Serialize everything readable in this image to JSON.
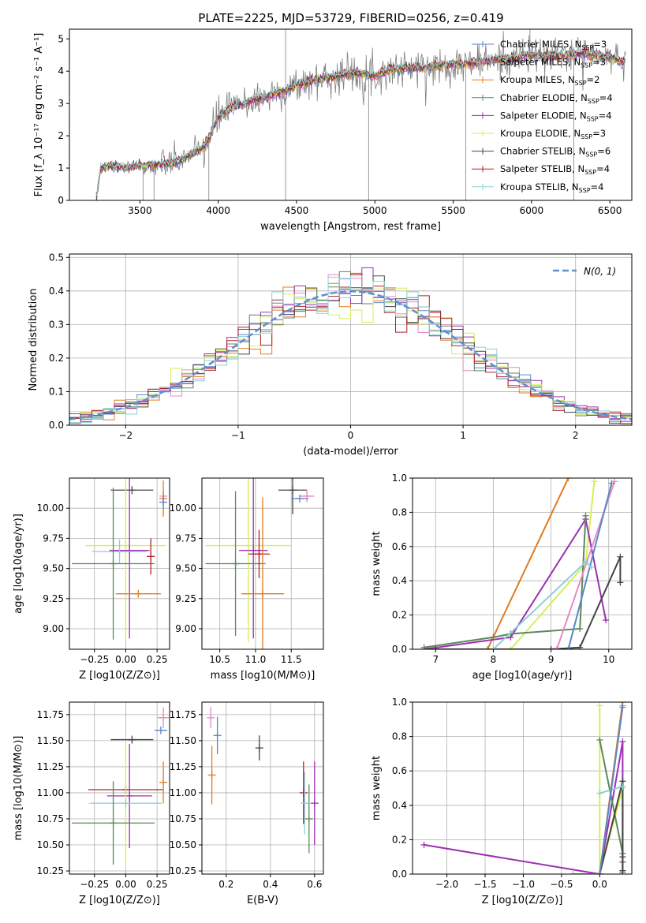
{
  "figure_title": "PLATE=2225, MJD=53729, FIBERID=0256, z=0.419",
  "colors": {
    "Chabrier MILES": "#5b86c9",
    "Salpeter MILES": "#e78ac3",
    "Kroupa MILES": "#e07b20",
    "Chabrier ELODIE": "#5a8a5a",
    "Salpeter ELODIE": "#9b30b0",
    "Kroupa ELODIE": "#d4ef5a",
    "Chabrier STELIB": "#444444",
    "Salpeter STELIB": "#b0202a",
    "Kroupa STELIB": "#8ecfd8",
    "data": "#808080",
    "gaussian": "#5b8fd6"
  },
  "chart_data": [
    {
      "id": "spectrum",
      "type": "line",
      "xlabel": "wavelength [Angstrom, rest frame]",
      "ylabel": "Flux [f_λ 10⁻¹⁷ erg cm⁻² s⁻¹ A⁻¹]",
      "xlim": [
        3050,
        6640
      ],
      "ylim": [
        0,
        5.3
      ],
      "xticks": [
        3500,
        4000,
        4500,
        5000,
        5500,
        6000,
        6500
      ],
      "yticks": [
        0,
        1,
        2,
        3,
        4,
        5
      ],
      "grid": false,
      "legend_position": "right",
      "data_trace": {
        "name": "data",
        "x": [
          3220,
          3250,
          3300,
          3350,
          3400,
          3450,
          3500,
          3550,
          3600,
          3650,
          3700,
          3750,
          3800,
          3850,
          3900,
          3950,
          4000,
          4100,
          4200,
          4300,
          4400,
          4500,
          4600,
          4700,
          4800,
          4900,
          5000,
          5100,
          5200,
          5300,
          5400,
          5500,
          5600,
          5700,
          5800,
          5900,
          6000,
          6100,
          6200,
          6300,
          6400,
          6500,
          6600
        ],
        "y": [
          0.02,
          1.0,
          1.07,
          1.05,
          1.0,
          1.05,
          1.1,
          1.08,
          1.1,
          1.12,
          1.15,
          1.2,
          1.35,
          1.5,
          1.6,
          2.0,
          2.6,
          2.9,
          3.05,
          3.2,
          3.35,
          3.55,
          3.7,
          3.8,
          3.9,
          3.95,
          3.85,
          4.05,
          4.1,
          4.1,
          4.15,
          4.2,
          4.25,
          4.3,
          4.35,
          4.4,
          4.5,
          4.45,
          4.5,
          4.55,
          4.5,
          4.4,
          4.3
        ]
      },
      "model_traces": [
        {
          "name": "Chabrier MILES",
          "label": "Chabrier MILES, N",
          "sub": "SSP",
          "suffix": "=3"
        },
        {
          "name": "Salpeter MILES",
          "label": "Salpeter MILES, N",
          "sub": "SSP",
          "suffix": "=3"
        },
        {
          "name": "Kroupa MILES",
          "label": "Kroupa MILES, N",
          "sub": "SSP",
          "suffix": "=2"
        },
        {
          "name": "Chabrier ELODIE",
          "label": "Chabrier ELODIE, N",
          "sub": "SSP",
          "suffix": "=4"
        },
        {
          "name": "Salpeter ELODIE",
          "label": "Salpeter ELODIE, N",
          "sub": "SSP",
          "suffix": "=4"
        },
        {
          "name": "Kroupa ELODIE",
          "label": "Kroupa ELODIE, N",
          "sub": "SSP",
          "suffix": "=3"
        },
        {
          "name": "Chabrier STELIB",
          "label": "Chabrier STELIB, N",
          "sub": "SSP",
          "suffix": "=6"
        },
        {
          "name": "Salpeter STELIB",
          "label": "Salpeter STELIB, N",
          "sub": "SSP",
          "suffix": "=4"
        },
        {
          "name": "Kroupa STELIB",
          "label": "Kroupa STELIB, N",
          "sub": "SSP",
          "suffix": "=4"
        }
      ]
    },
    {
      "id": "residuals",
      "type": "line",
      "xlabel": "(data-model)/error",
      "ylabel": "Normed distribution",
      "xlim": [
        -2.5,
        2.5
      ],
      "ylim": [
        0,
        0.51
      ],
      "xticks": [
        -2,
        -1,
        0,
        1,
        2
      ],
      "yticks": [
        0.0,
        0.1,
        0.2,
        0.3,
        0.4,
        0.5
      ],
      "grid": true,
      "legend_position": "top-right",
      "gaussian_label": "N(0, 1)",
      "bin_width": 0.1
    },
    {
      "id": "age_vs_Z",
      "type": "scatter",
      "xlabel": "Z [log10(Z/Z⊙)]",
      "ylabel": "age  [log10(age/yr)]",
      "xlim": [
        -0.45,
        0.35
      ],
      "ylim": [
        8.83,
        10.25
      ],
      "xticks": [
        -0.25,
        0.0,
        0.25
      ],
      "yticks": [
        9.0,
        9.25,
        9.5,
        9.75,
        10.0
      ],
      "grid": true,
      "points": [
        {
          "series": "Chabrier STELIB",
          "x": 0.05,
          "y": 10.15,
          "xerr": 0.17,
          "yerr": 0.0
        },
        {
          "series": "Salpeter MILES",
          "x": 0.3,
          "y": 10.1,
          "xerr": 0.0,
          "yerr": 0.05
        },
        {
          "series": "Kroupa MILES",
          "x": 0.3,
          "y": 10.08,
          "xerr": 0.0,
          "yerr": 0.15
        },
        {
          "series": "Chabrier MILES",
          "x": 0.3,
          "y": 10.05,
          "xerr": 0.0,
          "yerr": 0.05
        },
        {
          "series": "Kroupa ELODIE",
          "x": 0.0,
          "y": 9.69,
          "xerr": 0.32,
          "yerr": 0.8
        },
        {
          "series": "Salpeter ELODIE",
          "x": 0.03,
          "y": 9.65,
          "xerr": 0.16,
          "yerr": 0.73
        },
        {
          "series": "Kroupa STELIB",
          "x": -0.05,
          "y": 9.64,
          "xerr": 0.22,
          "yerr": 0.1
        },
        {
          "series": "Chabrier ELODIE",
          "x": -0.1,
          "y": 9.54,
          "xerr": 0.33,
          "yerr": 0.63
        },
        {
          "series": "Salpeter STELIB",
          "x": 0.2,
          "y": 9.6,
          "xerr": 0.0,
          "yerr": 0.15
        },
        {
          "series": "Kroupa MILES",
          "x": 0.1,
          "y": 9.29,
          "xerr": 0.18,
          "yerr": 0.0
        }
      ]
    },
    {
      "id": "age_vs_mass",
      "type": "scatter",
      "xlabel": "mass [log10(M/M⊙)]",
      "ylabel": "",
      "xlim": [
        10.25,
        11.95
      ],
      "ylim": [
        8.83,
        10.25
      ],
      "xticks": [
        10.5,
        11.0,
        11.5
      ],
      "yticks": [
        9.0,
        9.25,
        9.5,
        9.75,
        10.0
      ],
      "grid": true,
      "points": [
        {
          "series": "Chabrier STELIB",
          "x": 11.52,
          "y": 10.15,
          "xerr": 0.2,
          "yerr": 0.2
        },
        {
          "series": "Salpeter MILES",
          "x": 11.72,
          "y": 10.1,
          "xerr": 0.1,
          "yerr": 0.05
        },
        {
          "series": "Chabrier MILES",
          "x": 11.62,
          "y": 10.08,
          "xerr": 0.12,
          "yerr": 0.0
        },
        {
          "series": "Kroupa ELODIE",
          "x": 10.9,
          "y": 9.69,
          "xerr": 0.6,
          "yerr": 0.8
        },
        {
          "series": "Salpeter ELODIE",
          "x": 10.97,
          "y": 9.65,
          "xerr": 0.2,
          "yerr": 0.73
        },
        {
          "series": "Chabrier ELODIE",
          "x": 10.72,
          "y": 9.54,
          "xerr": 0.42,
          "yerr": 0.6
        },
        {
          "series": "Salpeter STELIB",
          "x": 11.05,
          "y": 9.62,
          "xerr": 0.15,
          "yerr": 0.2
        },
        {
          "series": "Kroupa MILES",
          "x": 11.1,
          "y": 9.29,
          "xerr": 0.3,
          "yerr": 0.8
        }
      ]
    },
    {
      "id": "weight_vs_age",
      "type": "line",
      "xlabel": "age  [log10(age/yr)]",
      "ylabel": "mass weight",
      "xlim": [
        6.6,
        10.4
      ],
      "ylim": [
        0,
        1
      ],
      "xticks": [
        7,
        8,
        9,
        10
      ],
      "yticks": [
        0.0,
        0.2,
        0.4,
        0.6,
        0.8,
        1.0
      ],
      "grid": true,
      "series": [
        {
          "name": "Kroupa MILES",
          "x": [
            7.9,
            9.3
          ],
          "y": [
            0.0,
            1.0
          ]
        },
        {
          "name": "Kroupa ELODIE",
          "x": [
            8.3,
            9.6,
            9.75
          ],
          "y": [
            0.0,
            0.5,
            0.98
          ]
        },
        {
          "name": "Salpeter ELODIE",
          "x": [
            6.8,
            8.3,
            9.6,
            9.95
          ],
          "y": [
            0.0,
            0.07,
            0.76,
            0.17
          ]
        },
        {
          "name": "Chabrier ELODIE",
          "x": [
            6.8,
            8.0,
            8.3,
            9.5,
            9.6
          ],
          "y": [
            0.01,
            0.07,
            0.09,
            0.12,
            0.78
          ]
        },
        {
          "name": "Chabrier STELIB",
          "x": [
            7.0,
            9.0,
            9.5,
            10.2,
            10.2
          ],
          "y": [
            0.0,
            0.0,
            0.01,
            0.54,
            0.39
          ]
        },
        {
          "name": "Salpeter MILES",
          "x": [
            9.1,
            10.1
          ],
          "y": [
            0.0,
            0.98
          ]
        },
        {
          "name": "Chabrier MILES",
          "x": [
            9.3,
            10.05
          ],
          "y": [
            0.0,
            0.97
          ]
        },
        {
          "name": "Kroupa STELIB",
          "x": [
            8.0,
            9.6,
            9.7
          ],
          "y": [
            0.0,
            0.51,
            0.48
          ]
        }
      ]
    },
    {
      "id": "mass_vs_Z",
      "type": "scatter",
      "xlabel": "Z [log10(Z/Z⊙)]",
      "ylabel": "mass [log10(M/M⊙)]",
      "xlim": [
        -0.45,
        0.35
      ],
      "ylim": [
        10.22,
        11.87
      ],
      "xticks": [
        -0.25,
        0.0,
        0.25
      ],
      "yticks": [
        10.25,
        10.5,
        10.75,
        11.0,
        11.25,
        11.5,
        11.75
      ],
      "grid": true,
      "points": [
        {
          "series": "Salpeter MILES",
          "x": 0.3,
          "y": 11.72,
          "xerr": 0.05,
          "yerr": 0.1
        },
        {
          "series": "Chabrier MILES",
          "x": 0.28,
          "y": 11.6,
          "xerr": 0.05,
          "yerr": 0.0
        },
        {
          "series": "Chabrier STELIB",
          "x": 0.05,
          "y": 11.51,
          "xerr": 0.17,
          "yerr": 0.0
        },
        {
          "series": "Salpeter STELIB",
          "x": 0.0,
          "y": 11.03,
          "xerr": 0.3,
          "yerr": 0.0
        },
        {
          "series": "Kroupa MILES",
          "x": 0.3,
          "y": 11.1,
          "xerr": 0.0,
          "yerr": 0.2
        },
        {
          "series": "Salpeter ELODIE",
          "x": 0.03,
          "y": 10.97,
          "xerr": 0.18,
          "yerr": 0.5
        },
        {
          "series": "Kroupa ELODIE",
          "x": 0.0,
          "y": 10.9,
          "xerr": 0.3,
          "yerr": 0.6
        },
        {
          "series": "Kroupa STELIB",
          "x": 0.0,
          "y": 10.9,
          "xerr": 0.28,
          "yerr": 0.0
        },
        {
          "series": "Chabrier ELODIE",
          "x": -0.1,
          "y": 10.71,
          "xerr": 0.33,
          "yerr": 0.4
        }
      ]
    },
    {
      "id": "mass_vs_ebv",
      "type": "scatter",
      "xlabel": "E(B-V)",
      "ylabel": "",
      "xlim": [
        0.09,
        0.64
      ],
      "ylim": [
        10.22,
        11.87
      ],
      "xticks": [
        0.2,
        0.4,
        0.6
      ],
      "yticks": [
        10.25,
        10.5,
        10.75,
        11.0,
        11.25,
        11.5,
        11.75
      ],
      "grid": true,
      "points": [
        {
          "series": "Salpeter MILES",
          "x": 0.13,
          "y": 11.72,
          "xerr": 0.0,
          "yerr": 0.1
        },
        {
          "series": "Chabrier MILES",
          "x": 0.16,
          "y": 11.55,
          "xerr": 0.0,
          "yerr": 0.18
        },
        {
          "series": "Kroupa MILES",
          "x": 0.135,
          "y": 11.17,
          "xerr": 0.0,
          "yerr": 0.28
        },
        {
          "series": "Chabrier STELIB",
          "x": 0.35,
          "y": 11.43,
          "xerr": 0.0,
          "yerr": 0.12
        },
        {
          "series": "Salpeter STELIB",
          "x": 0.55,
          "y": 11.0,
          "xerr": 0.0,
          "yerr": 0.3
        },
        {
          "series": "Chabrier ELODIE",
          "x": 0.575,
          "y": 10.75,
          "xerr": 0.0,
          "yerr": 0.33
        },
        {
          "series": "Kroupa STELIB",
          "x": 0.555,
          "y": 10.9,
          "xerr": 0.0,
          "yerr": 0.3
        },
        {
          "series": "Salpeter ELODIE",
          "x": 0.6,
          "y": 10.9,
          "xerr": 0.0,
          "yerr": 0.4
        }
      ]
    },
    {
      "id": "weight_vs_Z",
      "type": "line",
      "xlabel": "Z [log10(Z/Z⊙)]",
      "ylabel": "mass weight",
      "xlim": [
        -2.45,
        0.42
      ],
      "ylim": [
        0,
        1
      ],
      "xticks": [
        -2.0,
        -1.5,
        -1.0,
        -0.5,
        0.0
      ],
      "yticks": [
        0.0,
        0.2,
        0.4,
        0.6,
        0.8,
        1.0
      ],
      "grid": true,
      "series": [
        {
          "name": "Salpeter ELODIE",
          "x": [
            -2.3,
            0.0,
            0.3,
            0.3
          ],
          "y": [
            0.17,
            0.0,
            0.77,
            0.07
          ]
        },
        {
          "name": "Salpeter MILES",
          "x": [
            -0.35,
            0.0,
            0.3
          ],
          "y": [
            0.0,
            0.0,
            0.98
          ]
        },
        {
          "name": "Kroupa ELODIE",
          "x": [
            0.0,
            0.0,
            0.3
          ],
          "y": [
            0.98,
            0.0,
            0.5
          ]
        },
        {
          "name": "Kroupa MILES",
          "x": [
            0.0,
            0.3
          ],
          "y": [
            0.0,
            1.0
          ]
        },
        {
          "name": "Chabrier ELODIE",
          "x": [
            0.0,
            0.3,
            0.3
          ],
          "y": [
            0.78,
            0.12,
            0.01
          ]
        },
        {
          "name": "Chabrier STELIB",
          "x": [
            0.0,
            0.3,
            0.3,
            0.3
          ],
          "y": [
            0.0,
            0.54,
            0.02,
            0.1
          ]
        },
        {
          "name": "Kroupa STELIB",
          "x": [
            0.0,
            0.3
          ],
          "y": [
            0.47,
            0.51
          ]
        },
        {
          "name": "Chabrier MILES",
          "x": [
            0.0,
            0.3
          ],
          "y": [
            0.0,
            0.97
          ]
        }
      ]
    }
  ]
}
